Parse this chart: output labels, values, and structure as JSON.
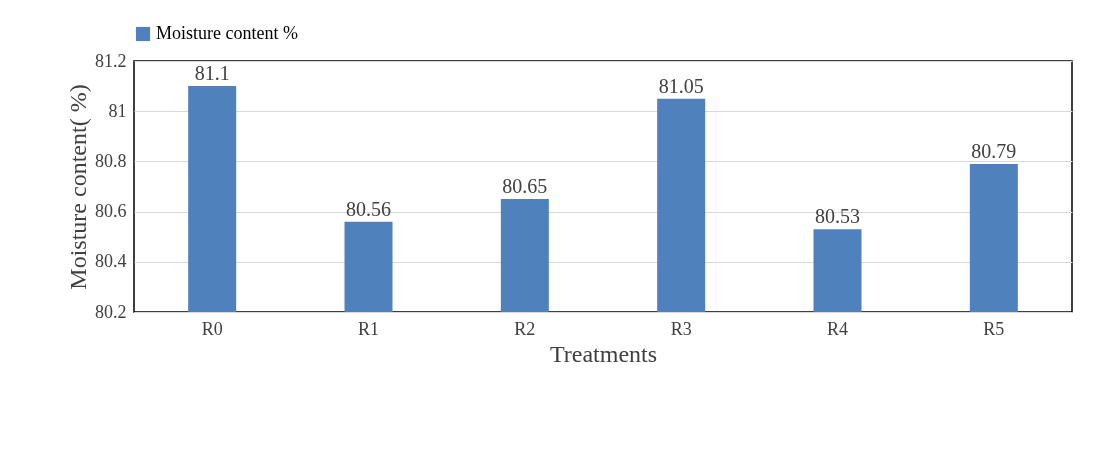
{
  "chart_data": {
    "type": "bar",
    "xlabel": "Treatments",
    "ylabel": "Moisture content( %)",
    "categories": [
      "R0",
      "R1",
      "R2",
      "R3",
      "R4",
      "R5"
    ],
    "series": [
      {
        "name": "Moisture content %",
        "color": "#4f81bd",
        "values": [
          81.1,
          80.56,
          80.65,
          81.05,
          80.53,
          80.79
        ]
      }
    ],
    "ylim": [
      80.2,
      81.2
    ],
    "yticks": [
      80.2,
      80.4,
      80.6,
      80.8,
      81,
      81.2
    ],
    "grid": "y",
    "legend": "top",
    "data_labels": true
  }
}
